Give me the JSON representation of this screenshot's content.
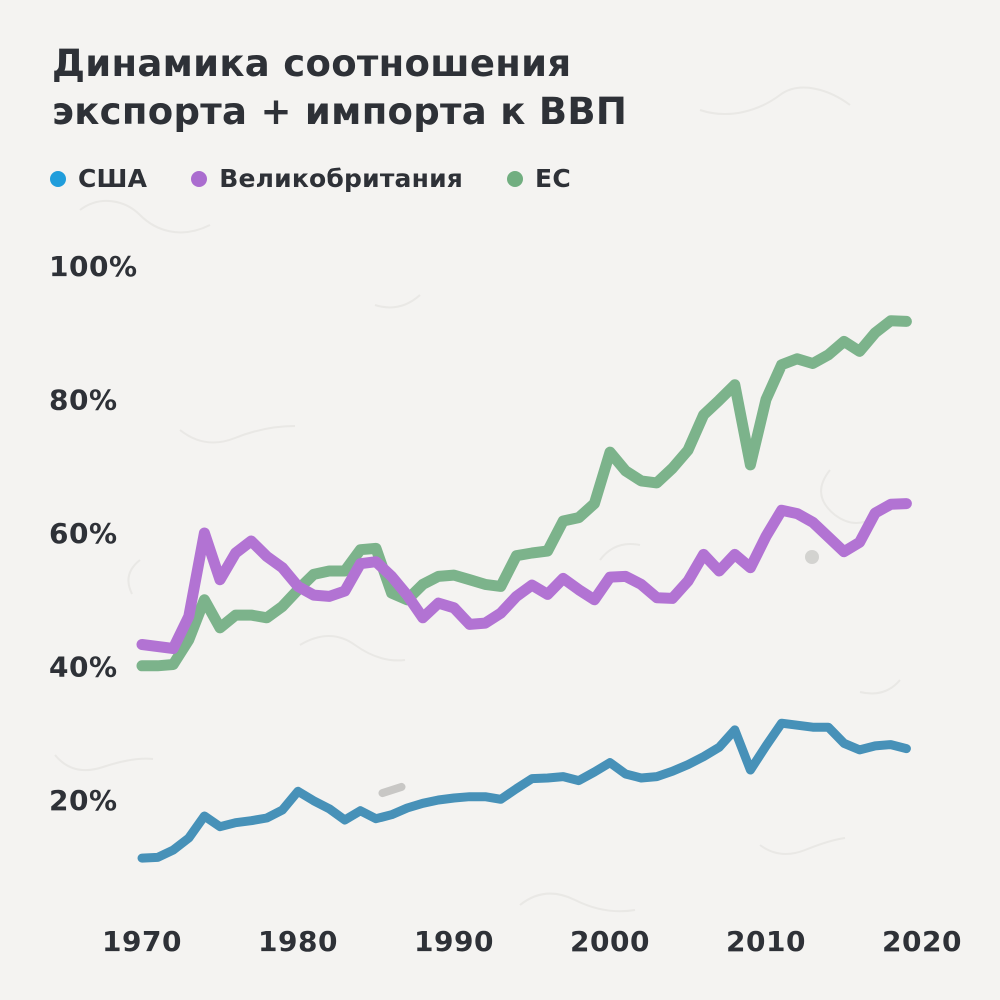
{
  "page": {
    "background": "#f4f3f1",
    "text_color": "#2e3137"
  },
  "title": {
    "line1": "Динамика соотношения",
    "line2": "экспорта + импорта к ВВП"
  },
  "legend": [
    {
      "label": "США",
      "dot_color": "#209ddb"
    },
    {
      "label": "Великобритания",
      "dot_color": "#aa6ccf"
    },
    {
      "label": "ЕС",
      "dot_color": "#71ae80"
    }
  ],
  "chart_data": {
    "type": "line",
    "title": "Динамика соотношения экспорта + импорта к ВВП",
    "unit": "%",
    "grid": false,
    "legend_position": "top",
    "xlabel": "",
    "ylabel": "",
    "ylim": [
      0,
      100
    ],
    "xlim": [
      1970,
      2020
    ],
    "x": [
      1970,
      1971,
      1972,
      1973,
      1974,
      1975,
      1976,
      1977,
      1978,
      1979,
      1980,
      1981,
      1982,
      1983,
      1984,
      1985,
      1986,
      1987,
      1988,
      1989,
      1990,
      1991,
      1992,
      1993,
      1994,
      1995,
      1996,
      1997,
      1998,
      1999,
      2000,
      2001,
      2002,
      2003,
      2004,
      2005,
      2006,
      2007,
      2008,
      2009,
      2010,
      2011,
      2012,
      2013,
      2014,
      2015,
      2016,
      2017,
      2018,
      2019
    ],
    "series": [
      {
        "name": "США",
        "color": "#4791b8",
        "values": [
          11.3,
          11.4,
          12.5,
          14.3,
          17.6,
          16.0,
          16.6,
          16.9,
          17.3,
          18.5,
          21.3,
          19.9,
          18.7,
          17.0,
          18.4,
          17.2,
          17.8,
          18.8,
          19.5,
          20.0,
          20.3,
          20.5,
          20.5,
          20.1,
          21.7,
          23.2,
          23.3,
          23.5,
          22.9,
          24.2,
          25.6,
          23.9,
          23.3,
          23.5,
          24.3,
          25.3,
          26.5,
          27.9,
          30.5,
          24.5,
          28.1,
          31.5,
          31.2,
          30.9,
          30.9,
          28.5,
          27.5,
          28.1,
          28.3,
          27.7
        ]
      },
      {
        "name": "Великобритания",
        "color": "#b273d3",
        "values": [
          43.3,
          43.0,
          42.7,
          47.5,
          60.0,
          53.0,
          57.0,
          58.8,
          56.5,
          54.8,
          52.0,
          50.7,
          50.5,
          51.3,
          55.4,
          55.7,
          53.5,
          50.7,
          47.3,
          49.5,
          48.8,
          46.3,
          46.5,
          48.0,
          50.5,
          52.2,
          50.8,
          53.2,
          51.5,
          50.0,
          53.4,
          53.5,
          52.3,
          50.3,
          50.2,
          52.8,
          56.8,
          54.3,
          56.8,
          54.8,
          59.5,
          63.4,
          62.9,
          61.6,
          59.4,
          57.2,
          58.6,
          63.0,
          64.3,
          64.4
        ]
      },
      {
        "name": "ЕС",
        "color": "#7cb38b",
        "values": [
          40.1,
          40.1,
          40.3,
          44.0,
          50.0,
          45.8,
          47.7,
          47.7,
          47.3,
          49.0,
          51.5,
          53.8,
          54.3,
          54.3,
          57.5,
          57.7,
          51.0,
          50.0,
          52.3,
          53.5,
          53.7,
          53.0,
          52.3,
          52.0,
          56.6,
          57.0,
          57.3,
          61.8,
          62.3,
          64.4,
          72.1,
          69.3,
          67.8,
          67.5,
          69.7,
          72.4,
          77.7,
          79.9,
          82.2,
          70.2,
          80.0,
          85.2,
          86.1,
          85.4,
          86.7,
          88.7,
          87.2,
          90.0,
          91.8,
          91.7
        ]
      }
    ],
    "yticks": [
      {
        "value": 100,
        "label": "100%"
      },
      {
        "value": 80,
        "label": "80%"
      },
      {
        "value": 60,
        "label": "60%"
      },
      {
        "value": 40,
        "label": "40%"
      },
      {
        "value": 20,
        "label": "20%"
      }
    ],
    "xticks": [
      {
        "year": 1970,
        "label": "1970"
      },
      {
        "year": 1980,
        "label": "1980"
      },
      {
        "year": 1990,
        "label": "1990"
      },
      {
        "year": 2000,
        "label": "2000"
      },
      {
        "year": 2010,
        "label": "2010"
      },
      {
        "year": 2020,
        "label": "2020"
      }
    ]
  }
}
